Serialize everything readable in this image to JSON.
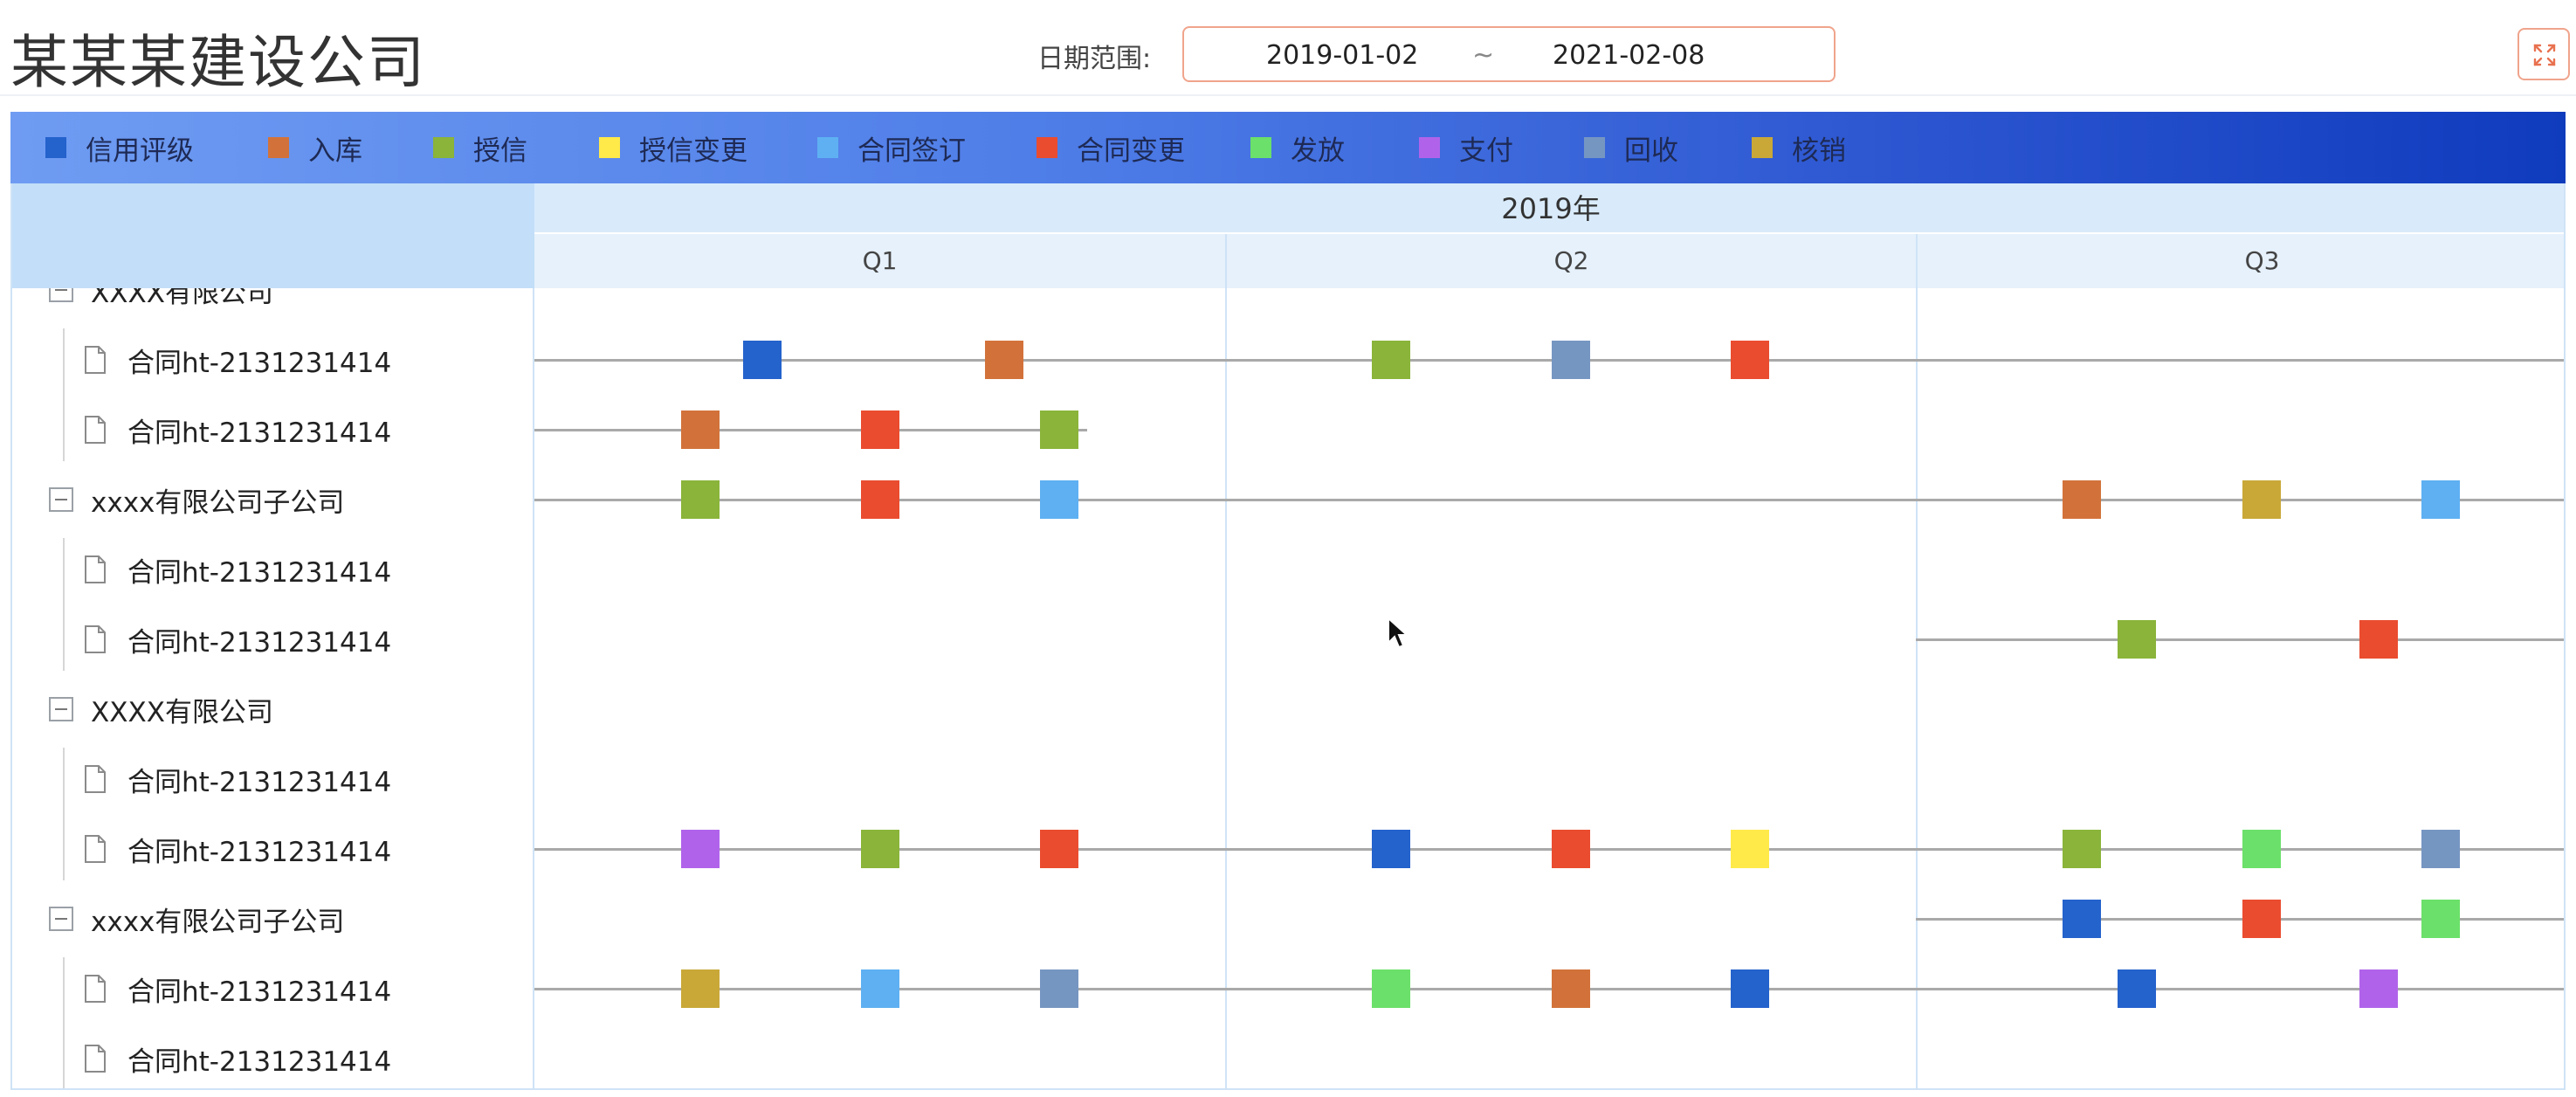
{
  "header": {
    "title": "某某某建设公司",
    "date_label": "日期范围:",
    "date_start": "2019-01-02",
    "date_separator": "~",
    "date_end": "2021-02-08",
    "fullscreen_icon": "expand-icon"
  },
  "legend": [
    {
      "key": "rating",
      "label": "信用评级",
      "color": "#2462cc"
    },
    {
      "key": "storage",
      "label": "入库",
      "color": "#d2723a"
    },
    {
      "key": "credit",
      "label": "授信",
      "color": "#8ab43a"
    },
    {
      "key": "credit_change",
      "label": "授信变更",
      "color": "#ffea4a"
    },
    {
      "key": "sign",
      "label": "合同签订",
      "color": "#5eb0f2"
    },
    {
      "key": "contract_change",
      "label": "合同变更",
      "color": "#ea4c2f"
    },
    {
      "key": "issue",
      "label": "发放",
      "color": "#6be06a"
    },
    {
      "key": "pay",
      "label": "支付",
      "color": "#b063ea"
    },
    {
      "key": "recover",
      "label": "回收",
      "color": "#7696c2"
    },
    {
      "key": "writeoff",
      "label": "核销",
      "color": "#c9a838"
    }
  ],
  "timeline": {
    "year": "2019年",
    "quarters": [
      "Q1",
      "Q2",
      "Q3"
    ]
  },
  "tree": [
    {
      "type": "parent",
      "label": "XXXX有限公司",
      "partial": true
    },
    {
      "type": "child",
      "label": "合同ht-2131231414"
    },
    {
      "type": "child",
      "label": "合同ht-2131231414"
    },
    {
      "type": "parent",
      "label": "xxxx有限公司子公司"
    },
    {
      "type": "child",
      "label": "合同ht-2131231414"
    },
    {
      "type": "child",
      "label": "合同ht-2131231414"
    },
    {
      "type": "parent",
      "label": "XXXX有限公司"
    },
    {
      "type": "child",
      "label": "合同ht-2131231414"
    },
    {
      "type": "child",
      "label": "合同ht-2131231414"
    },
    {
      "type": "parent",
      "label": "xxxx有限公司子公司"
    },
    {
      "type": "child",
      "label": "合同ht-2131231414"
    },
    {
      "type": "child",
      "label": "合同ht-2131231414"
    }
  ],
  "rows": [
    {
      "track": null,
      "events": []
    },
    {
      "track": [
        0,
        3
      ],
      "events": [
        [
          "rating",
          0.33
        ],
        [
          "storage",
          0.68
        ],
        [
          "credit",
          1.24
        ],
        [
          "recover",
          1.5
        ],
        [
          "contract_change",
          1.76
        ]
      ]
    },
    {
      "track": [
        0,
        0.8
      ],
      "events": [
        [
          "storage",
          0.24
        ],
        [
          "contract_change",
          0.5
        ],
        [
          "credit",
          0.76
        ]
      ]
    },
    {
      "track": [
        0,
        3
      ],
      "events": [
        [
          "credit",
          0.24
        ],
        [
          "contract_change",
          0.5
        ],
        [
          "sign",
          0.76
        ],
        [
          "storage",
          2.24
        ],
        [
          "writeoff",
          2.5
        ],
        [
          "sign",
          2.76
        ]
      ]
    },
    {
      "track": null,
      "events": []
    },
    {
      "track": [
        2,
        3
      ],
      "events": [
        [
          "credit",
          2.32
        ],
        [
          "contract_change",
          2.67
        ]
      ]
    },
    {
      "track": null,
      "events": []
    },
    {
      "track": null,
      "events": []
    },
    {
      "track": [
        0,
        3
      ],
      "events": [
        [
          "pay",
          0.24
        ],
        [
          "credit",
          0.5
        ],
        [
          "contract_change",
          0.76
        ],
        [
          "rating",
          1.24
        ],
        [
          "contract_change",
          1.5
        ],
        [
          "credit_change",
          1.76
        ],
        [
          "credit",
          2.24
        ],
        [
          "issue",
          2.5
        ],
        [
          "recover",
          2.76
        ]
      ]
    },
    {
      "track": [
        2,
        3
      ],
      "events": [
        [
          "rating",
          2.24
        ],
        [
          "contract_change",
          2.5
        ],
        [
          "issue",
          2.76
        ]
      ]
    },
    {
      "track": [
        0,
        3
      ],
      "events": [
        [
          "writeoff",
          0.24
        ],
        [
          "sign",
          0.5
        ],
        [
          "recover",
          0.76
        ],
        [
          "issue",
          1.24
        ],
        [
          "storage",
          1.5
        ],
        [
          "rating",
          1.76
        ],
        [
          "rating",
          2.32
        ],
        [
          "pay",
          2.67
        ]
      ]
    },
    {
      "track": null,
      "events": []
    }
  ]
}
